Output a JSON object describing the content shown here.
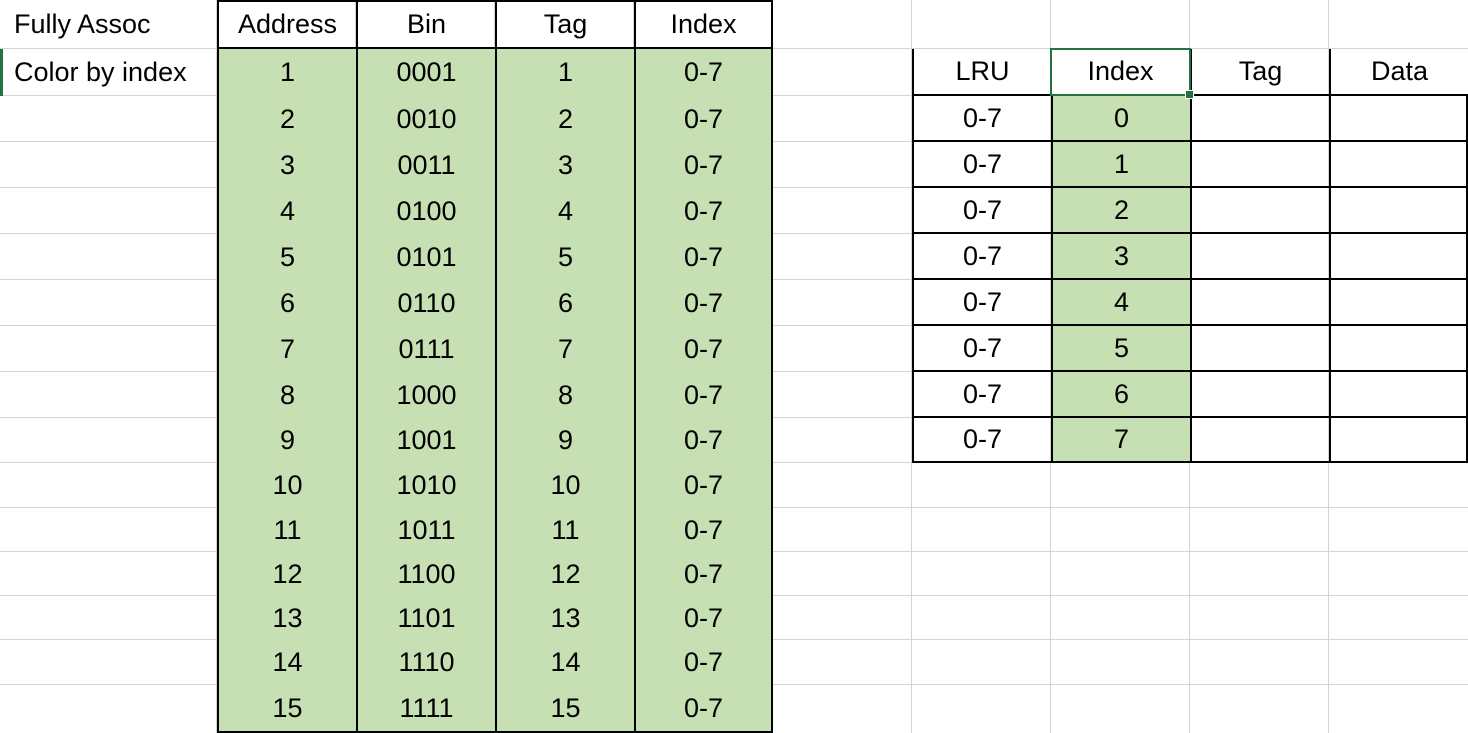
{
  "labels": {
    "fully_assoc": "Fully Assoc",
    "color_by_index": "Color by index"
  },
  "address_table": {
    "headers": [
      "Address",
      "Bin",
      "Tag",
      "Index"
    ],
    "rows": [
      [
        "1",
        "0001",
        "1",
        "0-7"
      ],
      [
        "2",
        "0010",
        "2",
        "0-7"
      ],
      [
        "3",
        "0011",
        "3",
        "0-7"
      ],
      [
        "4",
        "0100",
        "4",
        "0-7"
      ],
      [
        "5",
        "0101",
        "5",
        "0-7"
      ],
      [
        "6",
        "0110",
        "6",
        "0-7"
      ],
      [
        "7",
        "0111",
        "7",
        "0-7"
      ],
      [
        "8",
        "1000",
        "8",
        "0-7"
      ],
      [
        "9",
        "1001",
        "9",
        "0-7"
      ],
      [
        "10",
        "1010",
        "10",
        "0-7"
      ],
      [
        "11",
        "1011",
        "11",
        "0-7"
      ],
      [
        "12",
        "1100",
        "12",
        "0-7"
      ],
      [
        "13",
        "1101",
        "13",
        "0-7"
      ],
      [
        "14",
        "1110",
        "14",
        "0-7"
      ],
      [
        "15",
        "1111",
        "15",
        "0-7"
      ]
    ]
  },
  "cache_table": {
    "headers": [
      "LRU",
      "Index",
      "Tag",
      "Data"
    ],
    "rows": [
      [
        "0-7",
        "0",
        "",
        ""
      ],
      [
        "0-7",
        "1",
        "",
        ""
      ],
      [
        "0-7",
        "2",
        "",
        ""
      ],
      [
        "0-7",
        "3",
        "",
        ""
      ],
      [
        "0-7",
        "4",
        "",
        ""
      ],
      [
        "0-7",
        "5",
        "",
        ""
      ],
      [
        "0-7",
        "6",
        "",
        ""
      ],
      [
        "0-7",
        "7",
        "",
        ""
      ]
    ]
  },
  "colors": {
    "fill_green": "#c6e0b4",
    "selection": "#217346",
    "gridline": "#d4d4d4"
  }
}
